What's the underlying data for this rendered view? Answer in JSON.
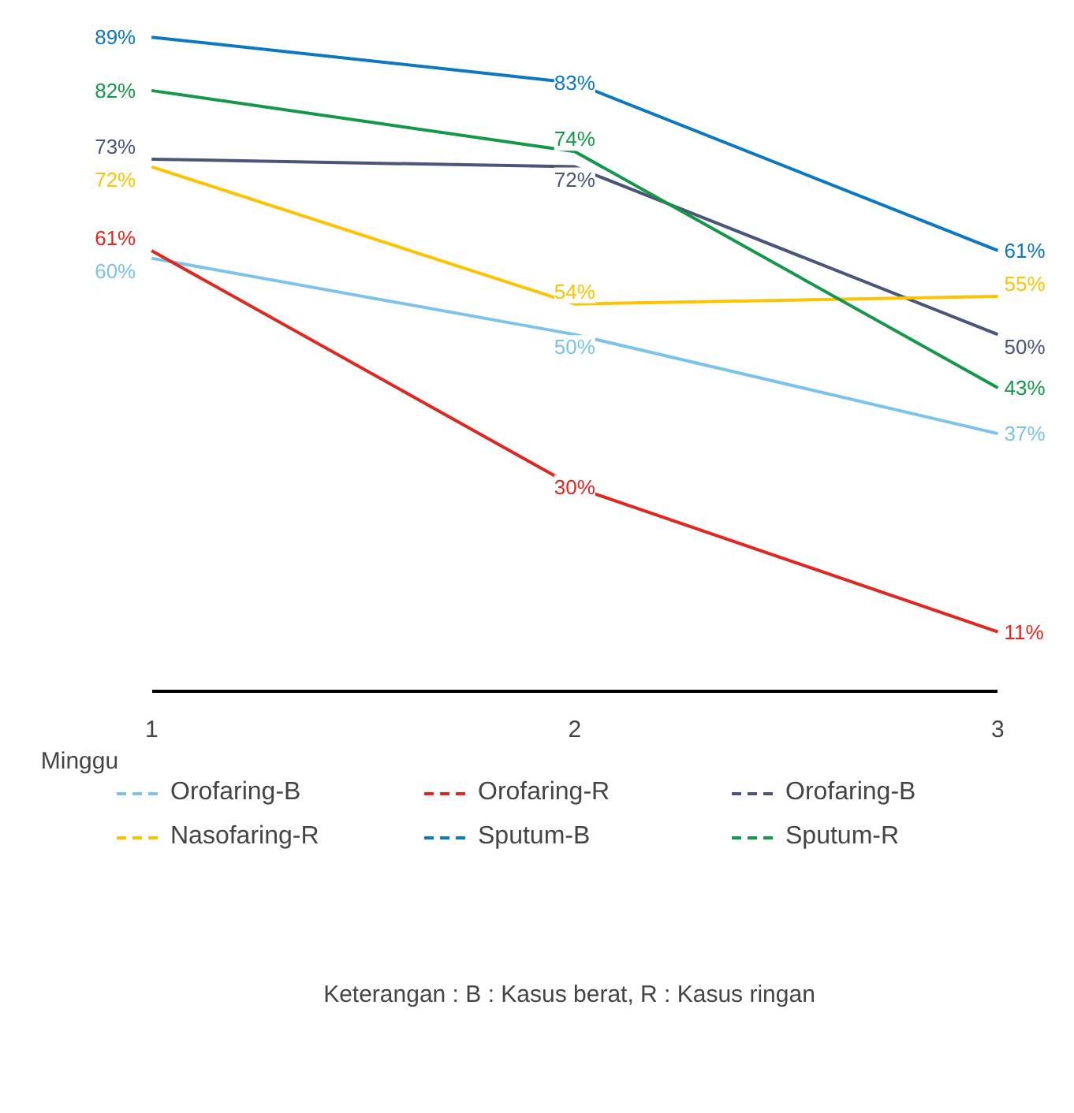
{
  "chart_data": {
    "type": "line",
    "xlabel": "Minggu",
    "categories": [
      "1",
      "2",
      "3"
    ],
    "series": [
      {
        "name": "Orofaring-B",
        "color": "#7cc3ec",
        "values": [
          60,
          50,
          37
        ],
        "value_labels": [
          "60%",
          "50%",
          "37%"
        ]
      },
      {
        "name": "Orofaring-R",
        "color": "#e0261e",
        "values": [
          61,
          30,
          11
        ],
        "value_labels": [
          "61%",
          "30%",
          "11%"
        ]
      },
      {
        "name": "Orofaring-B",
        "color": "#4b5579",
        "values": [
          73,
          72,
          50
        ],
        "value_labels": [
          "73%",
          "72%",
          "50%"
        ]
      },
      {
        "name": "Nasofaring-R",
        "color": "#fdc300",
        "values": [
          72,
          54,
          55
        ],
        "value_labels": [
          "72%",
          "54%",
          "55%"
        ]
      },
      {
        "name": "Sputum-B",
        "color": "#0b78c1",
        "values": [
          89,
          83,
          61
        ],
        "value_labels": [
          "89%",
          "83%",
          "61%"
        ]
      },
      {
        "name": "Sputum-R",
        "color": "#13984a",
        "values": [
          82,
          74,
          43
        ],
        "value_labels": [
          "82%",
          "74%",
          "43%"
        ]
      }
    ],
    "legend": "bottom",
    "grid": false,
    "line_style": "solid",
    "annotations": [
      "Keterangan : B : Kasus berat, R : Kasus ringan"
    ]
  }
}
